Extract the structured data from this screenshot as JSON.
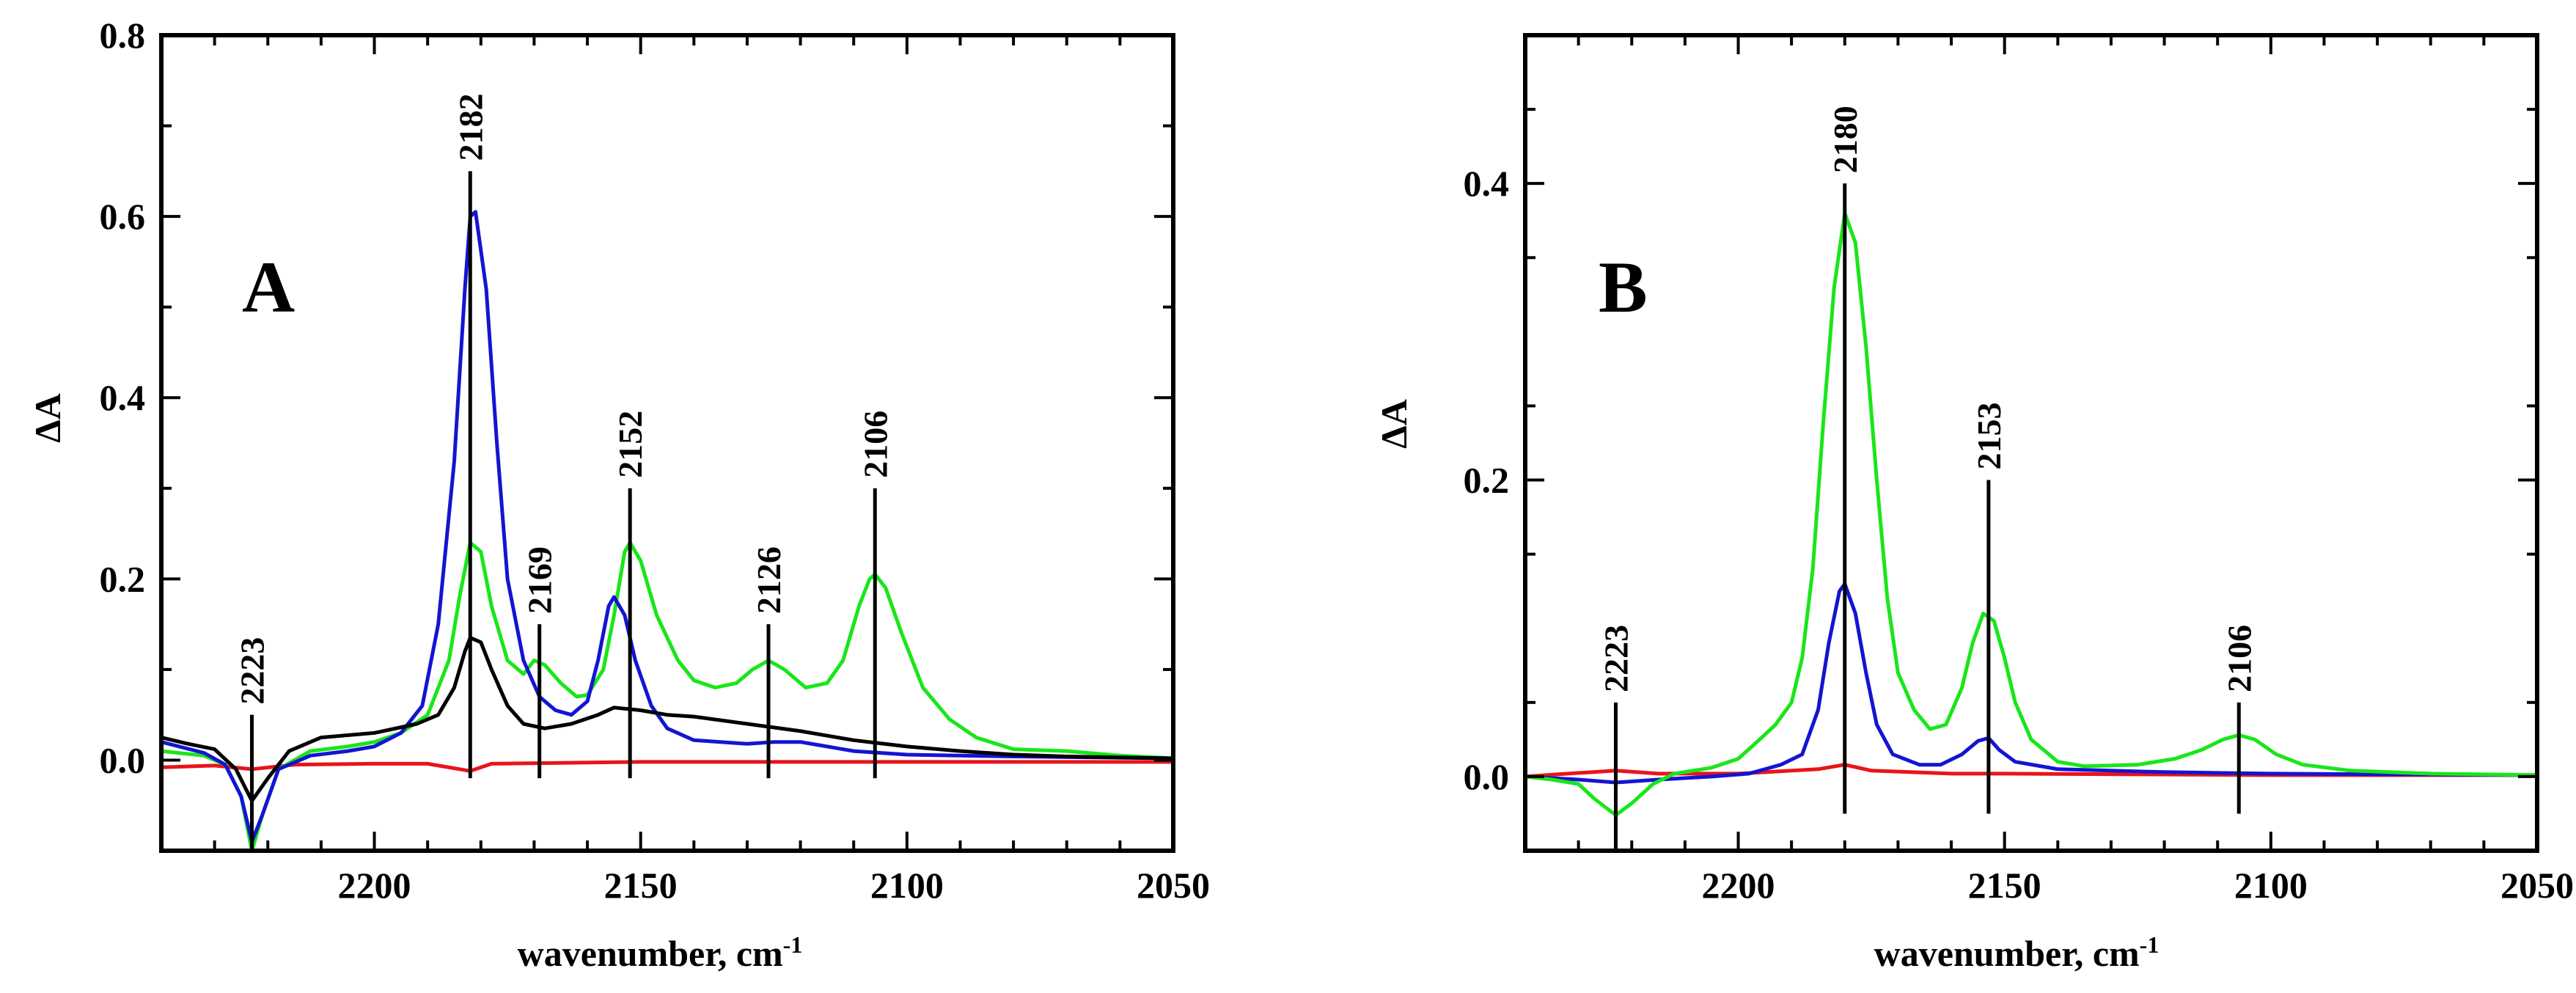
{
  "chart_data": [
    {
      "type": "line",
      "panel_label": "A",
      "xlabel": "wavenumber, cm",
      "xlabel_sup": "-1",
      "ylabel": "ΔA",
      "xlim": [
        2240,
        2050
      ],
      "ylim": [
        -0.1,
        0.8
      ],
      "xticks": [
        2200,
        2150,
        2100,
        2050
      ],
      "xtick_labels": [
        "2200",
        "2150",
        "2100",
        "2050"
      ],
      "yticks": [
        0.0,
        0.2,
        0.4,
        0.6,
        0.8
      ],
      "ytick_labels": [
        "0.0",
        "0.2",
        "0.4",
        "0.6",
        "0.8"
      ],
      "x_minor_step": 10,
      "y_minor_step": 0.1,
      "peak_markers": [
        {
          "x": 2223,
          "top": 0.05,
          "bottom": -0.1,
          "label": "2223"
        },
        {
          "x": 2182,
          "top": 0.65,
          "bottom": -0.02,
          "label": "2182"
        },
        {
          "x": 2169,
          "top": 0.15,
          "bottom": -0.02,
          "label": "2169"
        },
        {
          "x": 2152,
          "top": 0.3,
          "bottom": -0.02,
          "label": "2152"
        },
        {
          "x": 2126,
          "top": 0.15,
          "bottom": -0.02,
          "label": "2126"
        },
        {
          "x": 2106,
          "top": 0.3,
          "bottom": -0.02,
          "label": "2106"
        }
      ],
      "series": [
        {
          "name": "red",
          "color": "#e8141a",
          "points": [
            [
              2240,
              -0.008
            ],
            [
              2230,
              -0.006
            ],
            [
              2223,
              -0.01
            ],
            [
              2215,
              -0.005
            ],
            [
              2200,
              -0.004
            ],
            [
              2190,
              -0.004
            ],
            [
              2182,
              -0.012
            ],
            [
              2178,
              -0.004
            ],
            [
              2150,
              -0.002
            ],
            [
              2100,
              -0.002
            ],
            [
              2050,
              -0.002
            ]
          ]
        },
        {
          "name": "green",
          "color": "#19e619",
          "points": [
            [
              2240,
              0.01
            ],
            [
              2232,
              0.005
            ],
            [
              2228,
              -0.005
            ],
            [
              2225,
              -0.04
            ],
            [
              2223,
              -0.1
            ],
            [
              2221,
              -0.06
            ],
            [
              2218,
              -0.01
            ],
            [
              2212,
              0.01
            ],
            [
              2205,
              0.015
            ],
            [
              2200,
              0.02
            ],
            [
              2195,
              0.03
            ],
            [
              2190,
              0.05
            ],
            [
              2186,
              0.11
            ],
            [
              2184,
              0.18
            ],
            [
              2182,
              0.24
            ],
            [
              2180,
              0.23
            ],
            [
              2178,
              0.17
            ],
            [
              2175,
              0.11
            ],
            [
              2172,
              0.095
            ],
            [
              2170,
              0.11
            ],
            [
              2168,
              0.105
            ],
            [
              2165,
              0.085
            ],
            [
              2162,
              0.07
            ],
            [
              2160,
              0.072
            ],
            [
              2157,
              0.1
            ],
            [
              2155,
              0.16
            ],
            [
              2153,
              0.23
            ],
            [
              2152,
              0.24
            ],
            [
              2150,
              0.22
            ],
            [
              2147,
              0.16
            ],
            [
              2143,
              0.11
            ],
            [
              2140,
              0.088
            ],
            [
              2136,
              0.08
            ],
            [
              2132,
              0.085
            ],
            [
              2129,
              0.1
            ],
            [
              2126,
              0.11
            ],
            [
              2123,
              0.1
            ],
            [
              2119,
              0.08
            ],
            [
              2115,
              0.085
            ],
            [
              2112,
              0.11
            ],
            [
              2109,
              0.17
            ],
            [
              2107,
              0.2
            ],
            [
              2106,
              0.205
            ],
            [
              2104,
              0.19
            ],
            [
              2101,
              0.14
            ],
            [
              2097,
              0.08
            ],
            [
              2092,
              0.045
            ],
            [
              2087,
              0.025
            ],
            [
              2080,
              0.012
            ],
            [
              2070,
              0.01
            ],
            [
              2060,
              0.005
            ],
            [
              2050,
              0.002
            ]
          ]
        },
        {
          "name": "blue",
          "color": "#1414d2",
          "points": [
            [
              2240,
              0.02
            ],
            [
              2232,
              0.008
            ],
            [
              2228,
              -0.005
            ],
            [
              2225,
              -0.04
            ],
            [
              2223,
              -0.09
            ],
            [
              2221,
              -0.06
            ],
            [
              2218,
              -0.01
            ],
            [
              2212,
              0.005
            ],
            [
              2205,
              0.01
            ],
            [
              2200,
              0.015
            ],
            [
              2195,
              0.03
            ],
            [
              2191,
              0.06
            ],
            [
              2188,
              0.15
            ],
            [
              2185,
              0.33
            ],
            [
              2183,
              0.52
            ],
            [
              2182,
              0.6
            ],
            [
              2181,
              0.605
            ],
            [
              2179,
              0.52
            ],
            [
              2177,
              0.35
            ],
            [
              2175,
              0.2
            ],
            [
              2172,
              0.11
            ],
            [
              2169,
              0.07
            ],
            [
              2166,
              0.055
            ],
            [
              2163,
              0.05
            ],
            [
              2160,
              0.065
            ],
            [
              2158,
              0.11
            ],
            [
              2156,
              0.17
            ],
            [
              2155,
              0.18
            ],
            [
              2153,
              0.16
            ],
            [
              2151,
              0.11
            ],
            [
              2148,
              0.06
            ],
            [
              2145,
              0.035
            ],
            [
              2140,
              0.022
            ],
            [
              2130,
              0.018
            ],
            [
              2125,
              0.02
            ],
            [
              2120,
              0.02
            ],
            [
              2115,
              0.015
            ],
            [
              2110,
              0.01
            ],
            [
              2100,
              0.006
            ],
            [
              2080,
              0.004
            ],
            [
              2050,
              0.002
            ]
          ]
        },
        {
          "name": "black",
          "color": "#000000",
          "points": [
            [
              2240,
              0.025
            ],
            [
              2235,
              0.018
            ],
            [
              2230,
              0.012
            ],
            [
              2226,
              -0.01
            ],
            [
              2223,
              -0.045
            ],
            [
              2220,
              -0.02
            ],
            [
              2216,
              0.01
            ],
            [
              2210,
              0.025
            ],
            [
              2200,
              0.03
            ],
            [
              2192,
              0.04
            ],
            [
              2188,
              0.05
            ],
            [
              2185,
              0.08
            ],
            [
              2183,
              0.12
            ],
            [
              2182,
              0.135
            ],
            [
              2180,
              0.13
            ],
            [
              2178,
              0.1
            ],
            [
              2175,
              0.06
            ],
            [
              2172,
              0.04
            ],
            [
              2168,
              0.035
            ],
            [
              2163,
              0.04
            ],
            [
              2158,
              0.05
            ],
            [
              2155,
              0.058
            ],
            [
              2150,
              0.055
            ],
            [
              2145,
              0.05
            ],
            [
              2140,
              0.048
            ],
            [
              2130,
              0.04
            ],
            [
              2120,
              0.032
            ],
            [
              2110,
              0.022
            ],
            [
              2100,
              0.015
            ],
            [
              2090,
              0.01
            ],
            [
              2080,
              0.006
            ],
            [
              2070,
              0.004
            ],
            [
              2050,
              0.002
            ]
          ]
        }
      ]
    },
    {
      "type": "line",
      "panel_label": "B",
      "xlabel": "wavenumber, cm",
      "xlabel_sup": "-1",
      "ylabel": "ΔA",
      "xlim": [
        2240,
        2050
      ],
      "ylim": [
        -0.05,
        0.5
      ],
      "xticks": [
        2200,
        2150,
        2100,
        2050
      ],
      "xtick_labels": [
        "2200",
        "2150",
        "2100",
        "2050"
      ],
      "yticks": [
        0.0,
        0.2,
        0.4
      ],
      "ytick_labels": [
        "0.0",
        "0.2",
        "0.4"
      ],
      "x_minor_step": 10,
      "y_minor_step": 0.1,
      "peak_markers": [
        {
          "x": 2223,
          "top": 0.05,
          "bottom": -0.05,
          "label": "2223"
        },
        {
          "x": 2180,
          "top": 0.4,
          "bottom": -0.025,
          "label": "2180"
        },
        {
          "x": 2153,
          "top": 0.2,
          "bottom": -0.025,
          "label": "2153"
        },
        {
          "x": 2106,
          "top": 0.05,
          "bottom": -0.025,
          "label": "2106"
        }
      ],
      "series": [
        {
          "name": "red",
          "color": "#e8141a",
          "points": [
            [
              2240,
              0.0
            ],
            [
              2232,
              0.002
            ],
            [
              2223,
              0.004
            ],
            [
              2215,
              0.002
            ],
            [
              2200,
              0.002
            ],
            [
              2185,
              0.005
            ],
            [
              2180,
              0.008
            ],
            [
              2175,
              0.004
            ],
            [
              2160,
              0.002
            ],
            [
              2150,
              0.002
            ],
            [
              2100,
              0.001
            ],
            [
              2050,
              0.001
            ]
          ]
        },
        {
          "name": "blue",
          "color": "#1414d2",
          "points": [
            [
              2240,
              0.0
            ],
            [
              2230,
              -0.002
            ],
            [
              2223,
              -0.004
            ],
            [
              2215,
              -0.002
            ],
            [
              2205,
              0.0
            ],
            [
              2198,
              0.002
            ],
            [
              2192,
              0.008
            ],
            [
              2188,
              0.015
            ],
            [
              2185,
              0.045
            ],
            [
              2183,
              0.09
            ],
            [
              2181,
              0.125
            ],
            [
              2180,
              0.13
            ],
            [
              2178,
              0.11
            ],
            [
              2176,
              0.07
            ],
            [
              2174,
              0.035
            ],
            [
              2171,
              0.015
            ],
            [
              2166,
              0.008
            ],
            [
              2162,
              0.008
            ],
            [
              2158,
              0.015
            ],
            [
              2155,
              0.024
            ],
            [
              2153,
              0.026
            ],
            [
              2151,
              0.018
            ],
            [
              2148,
              0.01
            ],
            [
              2140,
              0.005
            ],
            [
              2120,
              0.003
            ],
            [
              2100,
              0.002
            ],
            [
              2050,
              0.001
            ]
          ]
        },
        {
          "name": "green",
          "color": "#19e619",
          "points": [
            [
              2240,
              0.0
            ],
            [
              2235,
              -0.002
            ],
            [
              2230,
              -0.005
            ],
            [
              2227,
              -0.015
            ],
            [
              2223,
              -0.026
            ],
            [
              2220,
              -0.018
            ],
            [
              2216,
              -0.005
            ],
            [
              2212,
              0.002
            ],
            [
              2205,
              0.006
            ],
            [
              2200,
              0.012
            ],
            [
              2196,
              0.025
            ],
            [
              2193,
              0.035
            ],
            [
              2190,
              0.05
            ],
            [
              2188,
              0.08
            ],
            [
              2186,
              0.14
            ],
            [
              2184,
              0.24
            ],
            [
              2182,
              0.33
            ],
            [
              2180,
              0.38
            ],
            [
              2178,
              0.36
            ],
            [
              2176,
              0.29
            ],
            [
              2174,
              0.2
            ],
            [
              2172,
              0.12
            ],
            [
              2170,
              0.07
            ],
            [
              2167,
              0.045
            ],
            [
              2164,
              0.032
            ],
            [
              2161,
              0.035
            ],
            [
              2158,
              0.06
            ],
            [
              2156,
              0.09
            ],
            [
              2154,
              0.11
            ],
            [
              2152,
              0.105
            ],
            [
              2150,
              0.08
            ],
            [
              2148,
              0.05
            ],
            [
              2145,
              0.025
            ],
            [
              2140,
              0.01
            ],
            [
              2135,
              0.007
            ],
            [
              2125,
              0.008
            ],
            [
              2118,
              0.012
            ],
            [
              2113,
              0.018
            ],
            [
              2109,
              0.025
            ],
            [
              2106,
              0.028
            ],
            [
              2103,
              0.025
            ],
            [
              2099,
              0.015
            ],
            [
              2094,
              0.008
            ],
            [
              2085,
              0.004
            ],
            [
              2070,
              0.002
            ],
            [
              2050,
              0.001
            ]
          ]
        }
      ]
    }
  ]
}
